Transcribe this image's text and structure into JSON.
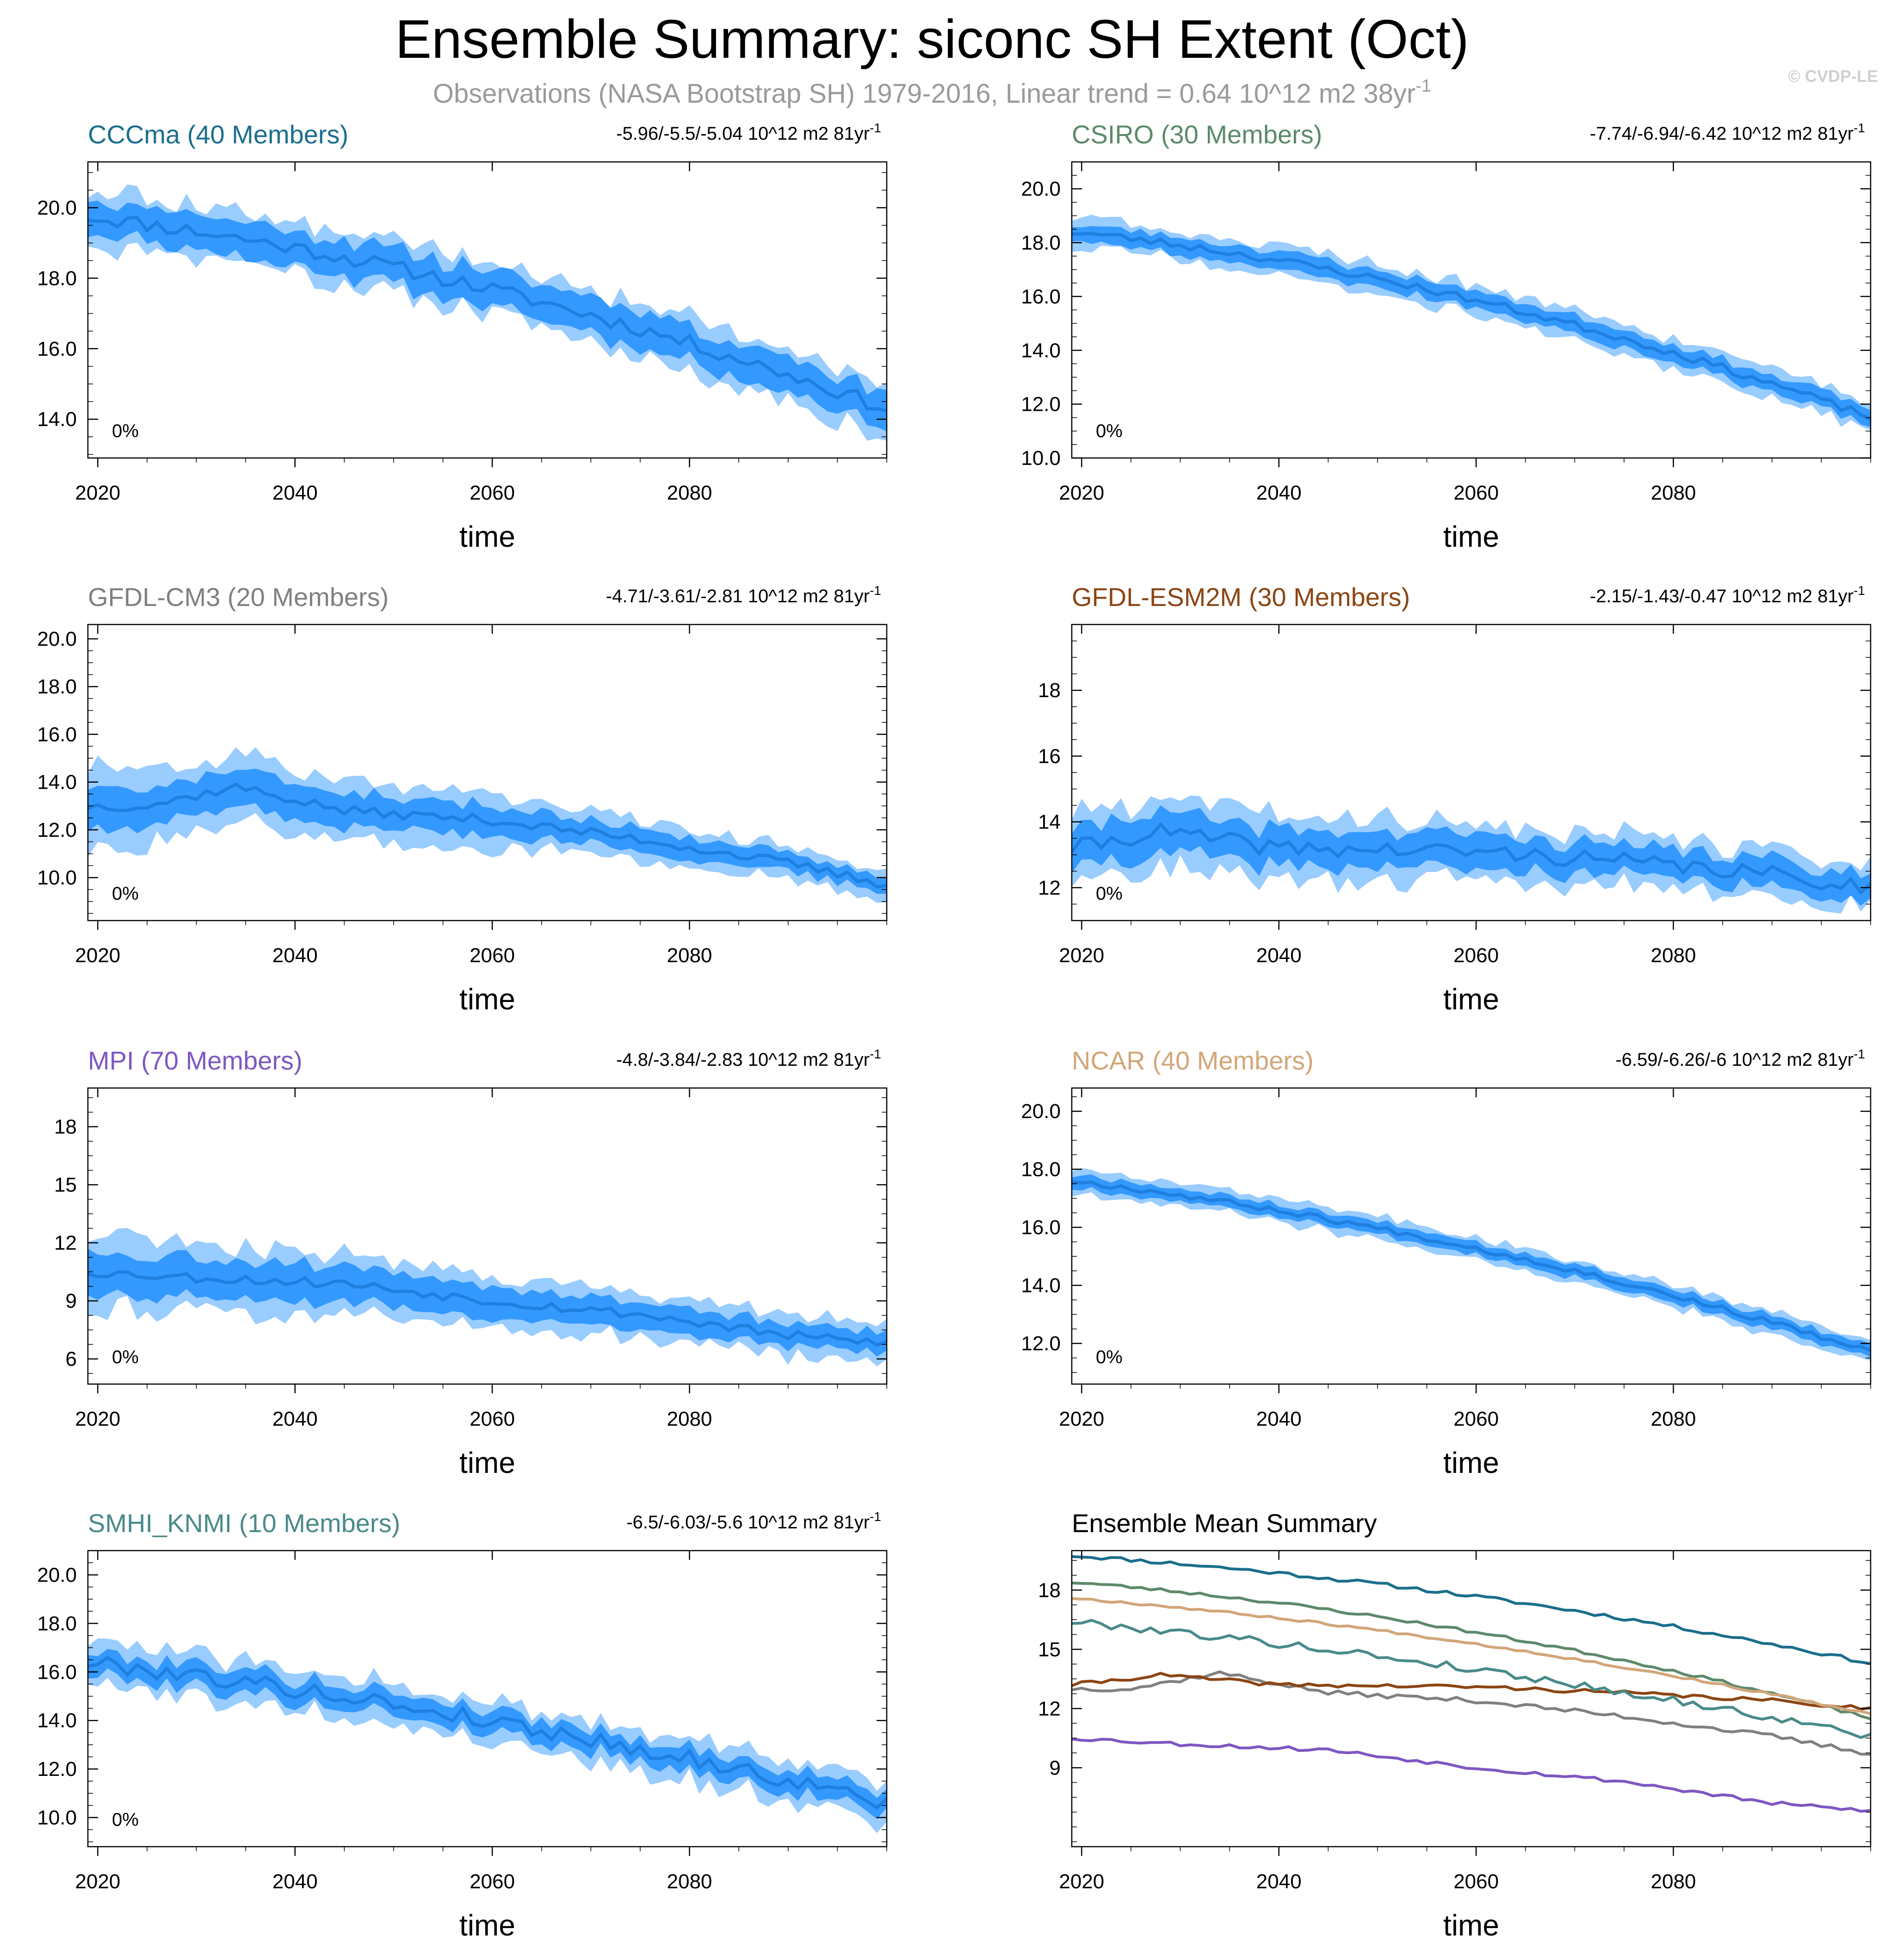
{
  "figure": {
    "title": "Ensemble Summary: siconc SH Extent (Oct)",
    "subtitle": "Observations (NASA Bootstrap SH) 1979-2016, Linear trend = 0.64 10^12 m2 38yr",
    "subtitle_sup": "-1",
    "credit": "© CVDP-LE"
  },
  "chart_data": [
    {
      "type": "area",
      "title": "CCCma (40 Members)",
      "title_color": "#1b6e8c",
      "trend": "-5.96/-5.5/-5.04 10^12 m2 81yr",
      "trend_sup": "-1",
      "percent": "0%",
      "xlabel": "time",
      "x_range": [
        2019,
        2100
      ],
      "x_ticks": [
        2020,
        2040,
        2060,
        2080
      ],
      "ylim": [
        12.9,
        21.3
      ],
      "y_ticks": [
        14.0,
        16.0,
        18.0,
        20.0
      ],
      "y_tick_labels": [
        "14.0",
        "16.0",
        "18.0",
        "20.0"
      ],
      "mean": {
        "start": 19.75,
        "end": 14.3,
        "curve": 0.5
      },
      "spread": {
        "inner": 0.5,
        "outer": 0.75
      },
      "noise": 0.22,
      "seed": 11
    },
    {
      "type": "area",
      "title": "CSIRO (30 Members)",
      "title_color": "#5c8a6a",
      "trend": "-7.74/-6.94/-6.42 10^12 m2 81yr",
      "trend_sup": "-1",
      "percent": "0%",
      "xlabel": "time",
      "x_range": [
        2019,
        2100
      ],
      "x_ticks": [
        2020,
        2040,
        2060,
        2080
      ],
      "ylim": [
        10.0,
        21.0
      ],
      "y_ticks": [
        10.0,
        12.0,
        14.0,
        16.0,
        18.0,
        20.0
      ],
      "y_tick_labels": [
        "10.0",
        "12.0",
        "14.0",
        "16.0",
        "18.0",
        "20.0"
      ],
      "mean": {
        "start": 18.4,
        "end": 11.5,
        "curve": 0.55
      },
      "spread": {
        "inner": 0.32,
        "outer": 0.55
      },
      "noise": 0.15,
      "seed": 23
    },
    {
      "type": "area",
      "title": "GFDL-CM3 (20 Members)",
      "title_color": "#808080",
      "trend": "-4.71/-3.61/-2.81 10^12 m2 81yr",
      "trend_sup": "-1",
      "percent": "0%",
      "xlabel": "time",
      "x_range": [
        2019,
        2100
      ],
      "x_ticks": [
        2020,
        2040,
        2060,
        2080
      ],
      "ylim": [
        8.2,
        20.6
      ],
      "y_ticks": [
        10.0,
        12.0,
        14.0,
        16.0,
        18.0,
        20.0
      ],
      "y_tick_labels": [
        "10.0",
        "12.0",
        "14.0",
        "16.0",
        "18.0",
        "20.0"
      ],
      "mean_points": [
        [
          2019,
          13.0
        ],
        [
          2025,
          13.0
        ],
        [
          2034,
          13.8
        ],
        [
          2045,
          12.8
        ],
        [
          2060,
          12.4
        ],
        [
          2075,
          11.6
        ],
        [
          2090,
          10.6
        ],
        [
          2100,
          9.7
        ]
      ],
      "spread": {
        "inner": 0.9,
        "outer": 1.6
      },
      "spread_end": {
        "inner": 0.3,
        "outer": 0.55
      },
      "noise": 0.2,
      "seed": 37
    },
    {
      "type": "area",
      "title": "GFDL-ESM2M (30 Members)",
      "title_color": "#8b4513",
      "trend": "-2.15/-1.43/-0.47 10^12 m2 81yr",
      "trend_sup": "-1",
      "percent": "0%",
      "xlabel": "time",
      "x_range": [
        2019,
        2100
      ],
      "x_ticks": [
        2020,
        2040,
        2060,
        2080
      ],
      "ylim": [
        11.0,
        20.0
      ],
      "y_ticks": [
        12,
        14,
        16,
        18
      ],
      "y_tick_labels": [
        "12",
        "14",
        "16",
        "18"
      ],
      "mean_points": [
        [
          2019,
          13.2
        ],
        [
          2028,
          13.7
        ],
        [
          2040,
          13.2
        ],
        [
          2060,
          13.1
        ],
        [
          2075,
          12.8
        ],
        [
          2090,
          12.4
        ],
        [
          2100,
          12.0
        ]
      ],
      "spread": {
        "inner": 0.6,
        "outer": 1.1
      },
      "spread_end": {
        "inner": 0.4,
        "outer": 0.65
      },
      "noise": 0.25,
      "seed": 41
    },
    {
      "type": "area",
      "title": "MPI (70 Members)",
      "title_color": "#7e57c2",
      "trend": "-4.8/-3.84/-2.83 10^12 m2 81yr",
      "trend_sup": "-1",
      "percent": "0%",
      "xlabel": "time",
      "x_range": [
        2019,
        2100
      ],
      "x_ticks": [
        2020,
        2040,
        2060,
        2080
      ],
      "ylim": [
        4.7,
        20.0
      ],
      "y_ticks": [
        6,
        9,
        12,
        15,
        18
      ],
      "y_tick_labels": [
        "6",
        "9",
        "12",
        "15",
        "18"
      ],
      "mean_points": [
        [
          2019,
          10.5
        ],
        [
          2030,
          10.2
        ],
        [
          2045,
          9.9
        ],
        [
          2060,
          9.0
        ],
        [
          2075,
          8.3
        ],
        [
          2090,
          7.2
        ],
        [
          2100,
          6.8
        ]
      ],
      "spread": {
        "inner": 1.1,
        "outer": 1.8
      },
      "spread_end": {
        "inner": 0.55,
        "outer": 0.95
      },
      "noise": 0.25,
      "seed": 53
    },
    {
      "type": "area",
      "title": "NCAR (40 Members)",
      "title_color": "#d2a679",
      "trend": "-6.59/-6.26/-6 10^12 m2 81yr",
      "trend_sup": "-1",
      "percent": "0%",
      "xlabel": "time",
      "x_range": [
        2019,
        2100
      ],
      "x_ticks": [
        2020,
        2040,
        2060,
        2080
      ],
      "ylim": [
        10.6,
        20.8
      ],
      "y_ticks": [
        12.0,
        14.0,
        16.0,
        18.0,
        20.0
      ],
      "y_tick_labels": [
        "12.0",
        "14.0",
        "16.0",
        "18.0",
        "20.0"
      ],
      "mean": {
        "start": 17.6,
        "end": 11.7,
        "curve": 0.45
      },
      "spread": {
        "inner": 0.22,
        "outer": 0.4
      },
      "noise": 0.1,
      "seed": 67
    },
    {
      "type": "area",
      "title": "SMHI_KNMI (10 Members)",
      "title_color": "#4a8a8a",
      "trend": "-6.5/-6.03/-5.6 10^12 m2 81yr",
      "trend_sup": "-1",
      "percent": "0%",
      "xlabel": "time",
      "x_range": [
        2019,
        2100
      ],
      "x_ticks": [
        2020,
        2040,
        2060,
        2080
      ],
      "ylim": [
        8.8,
        21.0
      ],
      "y_ticks": [
        10.0,
        12.0,
        14.0,
        16.0,
        18.0,
        20.0
      ],
      "y_tick_labels": [
        "10.0",
        "12.0",
        "14.0",
        "16.0",
        "18.0",
        "20.0"
      ],
      "mean": {
        "start": 16.4,
        "end": 10.6,
        "curve": 0.35
      },
      "spread": {
        "inner": 0.45,
        "outer": 0.85
      },
      "noise": 0.35,
      "seed": 79
    },
    {
      "type": "line",
      "title": "Ensemble Mean Summary",
      "title_color": "#000000",
      "xlabel": "time",
      "x_range": [
        2019,
        2100
      ],
      "x_ticks": [
        2020,
        2040,
        2060,
        2080
      ],
      "ylim": [
        5.0,
        20.0
      ],
      "y_ticks": [
        9,
        12,
        15,
        18
      ],
      "y_tick_labels": [
        "9",
        "12",
        "15",
        "18"
      ],
      "series": [
        {
          "name": "CCCma",
          "color": "#1b6e8c",
          "mean": {
            "start": 19.75,
            "end": 14.3,
            "curve": 0.5
          },
          "noise": 0.1,
          "seed": 11
        },
        {
          "name": "CSIRO",
          "color": "#5c8a6a",
          "mean": {
            "start": 18.4,
            "end": 11.5,
            "curve": 0.55
          },
          "noise": 0.08,
          "seed": 23
        },
        {
          "name": "GFDL-CM3",
          "color": "#808080",
          "mean_points": [
            [
              2019,
              13.0
            ],
            [
              2025,
              13.0
            ],
            [
              2034,
              13.8
            ],
            [
              2045,
              12.8
            ],
            [
              2060,
              12.4
            ],
            [
              2075,
              11.6
            ],
            [
              2090,
              10.6
            ],
            [
              2100,
              9.7
            ]
          ],
          "noise": 0.12,
          "seed": 37
        },
        {
          "name": "GFDL-ESM2M",
          "color": "#8b4513",
          "mean_points": [
            [
              2019,
              13.2
            ],
            [
              2028,
              13.7
            ],
            [
              2040,
              13.2
            ],
            [
              2060,
              13.1
            ],
            [
              2075,
              12.8
            ],
            [
              2090,
              12.4
            ],
            [
              2100,
              12.0
            ]
          ],
          "noise": 0.1,
          "seed": 41
        },
        {
          "name": "MPI",
          "color": "#7e57c2",
          "mean_points": [
            [
              2019,
              10.5
            ],
            [
              2030,
              10.2
            ],
            [
              2045,
              9.9
            ],
            [
              2060,
              9.0
            ],
            [
              2075,
              8.3
            ],
            [
              2090,
              7.2
            ],
            [
              2100,
              6.8
            ]
          ],
          "noise": 0.1,
          "seed": 53
        },
        {
          "name": "NCAR",
          "color": "#d2a679",
          "mean": {
            "start": 17.6,
            "end": 11.7,
            "curve": 0.45
          },
          "noise": 0.06,
          "seed": 67
        },
        {
          "name": "SMHI_KNMI",
          "color": "#4a8a8a",
          "mean": {
            "start": 16.4,
            "end": 10.6,
            "curve": 0.35
          },
          "noise": 0.2,
          "seed": 79
        }
      ]
    }
  ],
  "colors": {
    "outer_band": "#99ccff",
    "inner_band": "#3399ff",
    "mean_line": "#1e7fe0",
    "frame": "#000000"
  }
}
